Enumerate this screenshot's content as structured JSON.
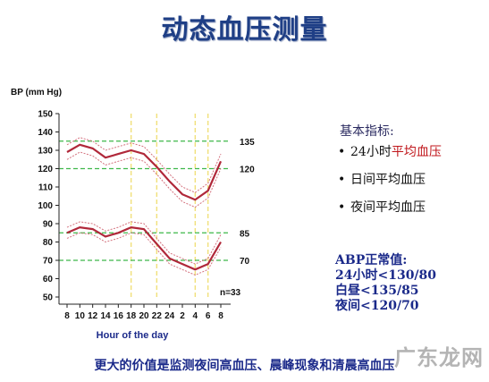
{
  "slide_title": "动态血压测量",
  "indicators": {
    "title": "基本指标:",
    "items": [
      {
        "prefix": "24小时",
        "highlight": "平均血压"
      },
      {
        "prefix": "日间平均血压",
        "highlight": ""
      },
      {
        "prefix": "夜间平均血压",
        "highlight": ""
      }
    ]
  },
  "normal_values": {
    "title": "ABP正常值:",
    "lines": [
      "24小时<130/80",
      "白昼<135/85",
      "夜间<120/70"
    ]
  },
  "bottom_note": "更大的价值是监测夜间高血压、晨峰现象和清晨高血压",
  "watermark": "广东龙网",
  "chart_data": {
    "type": "line",
    "title": "",
    "ylabel": "BP (mm Hg)",
    "xlabel": "Hour of the day",
    "ylim": [
      50,
      150
    ],
    "yticks": [
      50,
      60,
      70,
      80,
      90,
      100,
      110,
      120,
      130,
      140,
      150
    ],
    "x": [
      "8",
      "10",
      "12",
      "14",
      "16",
      "18",
      "20",
      "22",
      "24",
      "2",
      "4",
      "6",
      "8"
    ],
    "annotation": "n=33",
    "reference_lines": [
      {
        "value": 135,
        "label": "135"
      },
      {
        "value": 120,
        "label": "120"
      },
      {
        "value": 85,
        "label": "85"
      },
      {
        "value": 70,
        "label": "70"
      }
    ],
    "vertical_markers": [
      "18",
      "22",
      "4",
      "6"
    ],
    "series": [
      {
        "values": [
          129,
          133,
          131,
          126,
          128,
          130,
          128,
          121,
          113,
          106,
          103,
          108,
          124
        ]
      },
      {
        "values": [
          133,
          137,
          135,
          130,
          132,
          134,
          132,
          125,
          117,
          110,
          107,
          112,
          128
        ]
      },
      {
        "values": [
          125,
          129,
          127,
          122,
          124,
          126,
          124,
          117,
          109,
          102,
          99,
          104,
          120
        ]
      },
      {
        "values": [
          85,
          88,
          87,
          83,
          85,
          88,
          87,
          79,
          71,
          68,
          65,
          68,
          80
        ]
      },
      {
        "values": [
          88,
          91,
          90,
          86,
          88,
          91,
          90,
          82,
          74,
          71,
          68,
          71,
          84
        ]
      },
      {
        "values": [
          82,
          85,
          84,
          80,
          82,
          85,
          84,
          76,
          68,
          65,
          62,
          65,
          77
        ]
      }
    ],
    "colors": {
      "mean": "#b0283a",
      "band": "#d4737f",
      "reference": "#3fb84a",
      "vertical": "#f1e07a",
      "axis": "#222222"
    },
    "grid": false
  }
}
